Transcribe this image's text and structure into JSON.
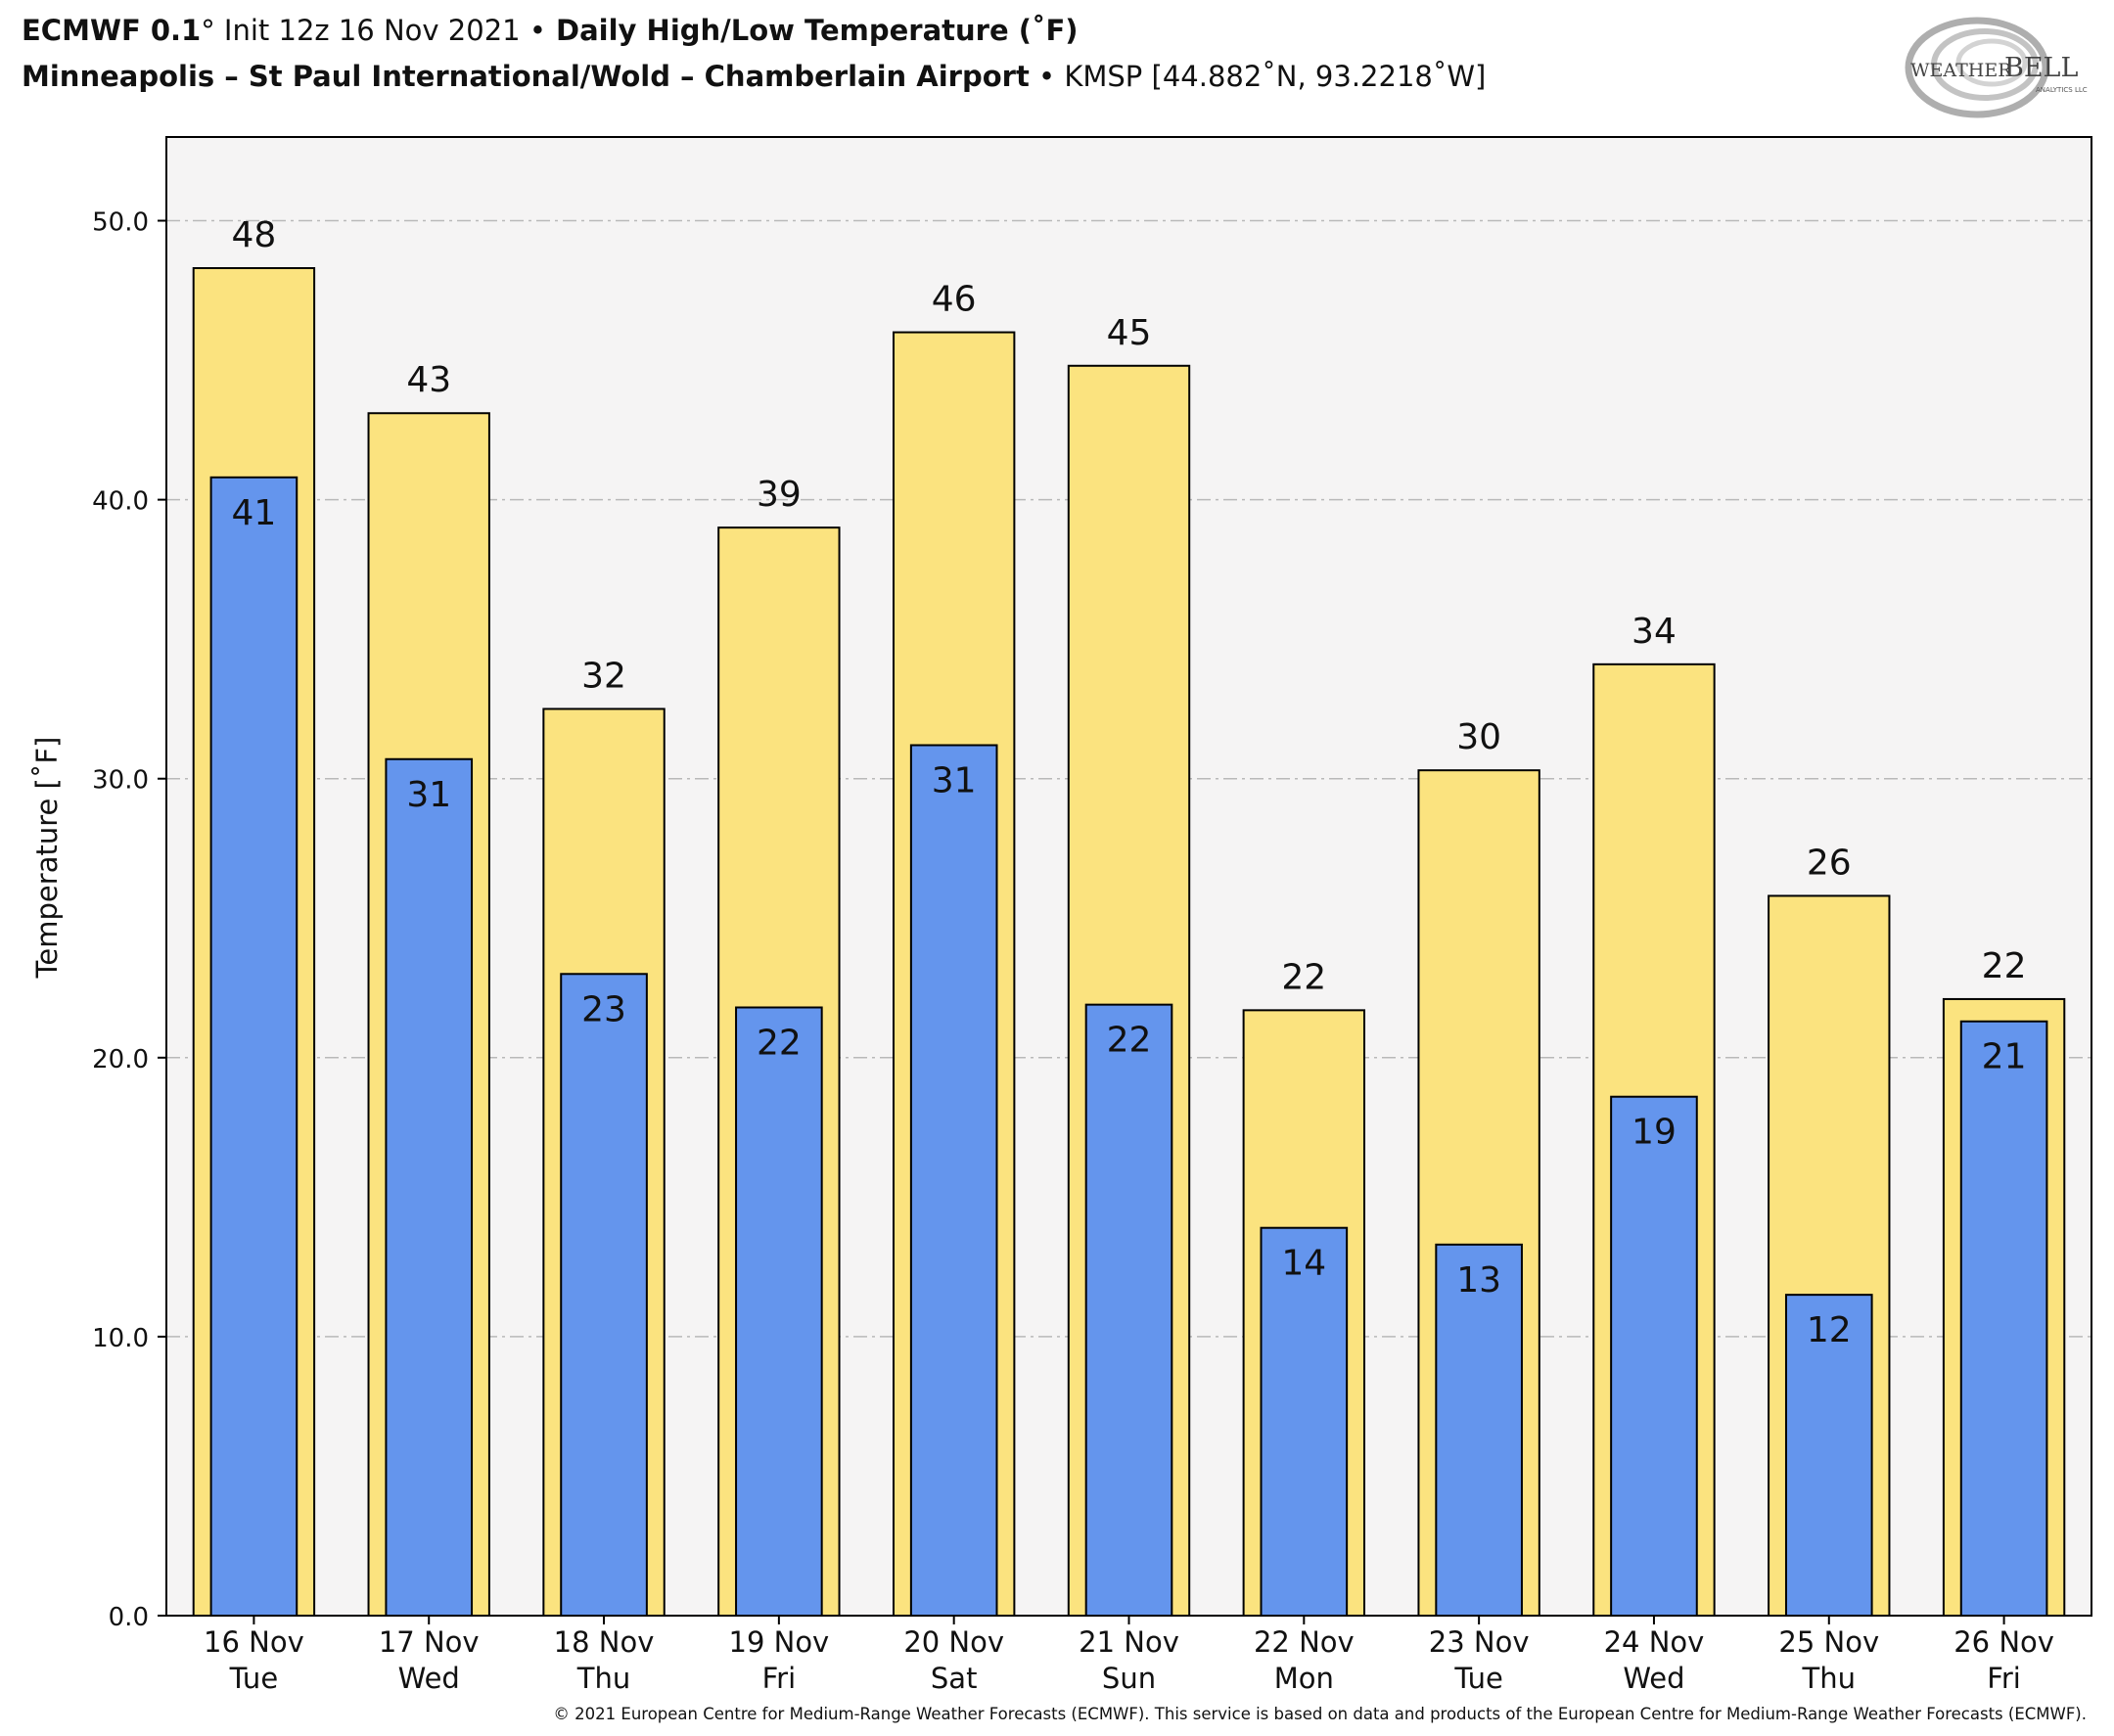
{
  "header": {
    "model": "ECMWF 0.1",
    "deg": "°",
    "init": " Init 12z 16 Nov 2021 ",
    "dot1": "•",
    "product": " Daily High/Low Temperature (˚F)",
    "station_name": "Minneapolis – St Paul International/Wold – Chamberlain Airport",
    "dot2": " • ",
    "station_id": "KMSP [44.882˚N, 93.2218˚W]"
  },
  "logo": {
    "text_weather": "WEATHER",
    "text_bell": "BELL",
    "text_sub": "ANALYTICS LLC"
  },
  "footer": "© 2021 European Centre for Medium-Range Weather Forecasts (ECMWF). This service is based on data and products of the European Centre for Medium-Range Weather Forecasts (ECMWF).",
  "chart_data": {
    "type": "bar",
    "ylabel": "Temperature [˚F]",
    "xlabel": "",
    "ylim": [
      0,
      53
    ],
    "yticks": [
      "0.0",
      "10.0",
      "20.0",
      "30.0",
      "40.0",
      "50.0"
    ],
    "grid": "horizontal dashed",
    "categories": [
      [
        "16 Nov",
        "Tue"
      ],
      [
        "17 Nov",
        "Wed"
      ],
      [
        "18 Nov",
        "Thu"
      ],
      [
        "19 Nov",
        "Fri"
      ],
      [
        "20 Nov",
        "Sat"
      ],
      [
        "21 Nov",
        "Sun"
      ],
      [
        "22 Nov",
        "Mon"
      ],
      [
        "23 Nov",
        "Tue"
      ],
      [
        "24 Nov",
        "Wed"
      ],
      [
        "25 Nov",
        "Thu"
      ],
      [
        "26 Nov",
        "Fri"
      ]
    ],
    "series": [
      {
        "role": "high",
        "color": "#fbe37f",
        "values": [
          48.3,
          43.1,
          32.5,
          39.0,
          46.0,
          44.8,
          21.7,
          30.3,
          34.1,
          25.8,
          22.1
        ]
      },
      {
        "role": "low",
        "color": "#6495ed",
        "values": [
          40.8,
          30.7,
          23.0,
          21.8,
          31.2,
          21.9,
          13.9,
          13.3,
          18.6,
          11.5,
          21.3
        ]
      }
    ],
    "high_labels": [
      "48",
      "43",
      "32",
      "39",
      "46",
      "45",
      "22",
      "30",
      "34",
      "26",
      "22"
    ],
    "low_labels": [
      "41",
      "31",
      "23",
      "22",
      "31",
      "22",
      "14",
      "13",
      "19",
      "12",
      "21"
    ]
  }
}
